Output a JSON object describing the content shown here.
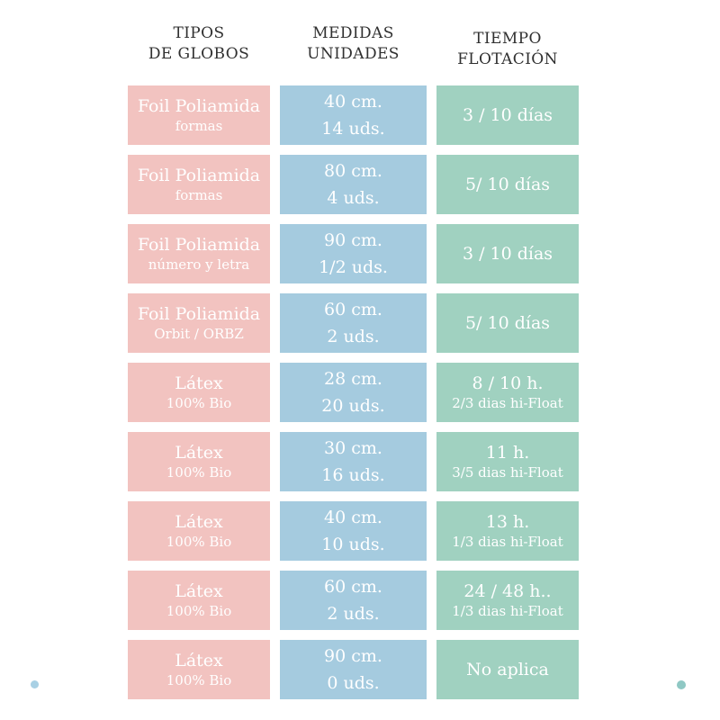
{
  "chart_data": {
    "type": "table",
    "columns": [
      {
        "header_line1": "TIPOS",
        "header_line2": "DE GLOBOS"
      },
      {
        "header_line1": "MEDIDAS",
        "header_line2": "UNIDADES"
      },
      {
        "header_line1": "TIEMPO",
        "header_line2": "FLOTACIÓN"
      }
    ],
    "rows": [
      {
        "tipo_main": "Foil Poliamida",
        "tipo_sub": "formas",
        "medida_size": "40 cm.",
        "medida_units": "14 uds.",
        "tiempo_main": "3 / 10 días",
        "tiempo_sub": ""
      },
      {
        "tipo_main": "Foil Poliamida",
        "tipo_sub": "formas",
        "medida_size": "80 cm.",
        "medida_units": "4 uds.",
        "tiempo_main": "5/ 10 días",
        "tiempo_sub": ""
      },
      {
        "tipo_main": "Foil Poliamida",
        "tipo_sub": "número y letra",
        "medida_size": "90 cm.",
        "medida_units": "1/2 uds.",
        "tiempo_main": "3 / 10 días",
        "tiempo_sub": ""
      },
      {
        "tipo_main": "Foil Poliamida",
        "tipo_sub": "Orbit / ORBZ",
        "medida_size": "60 cm.",
        "medida_units": "2 uds.",
        "tiempo_main": "5/ 10 días",
        "tiempo_sub": ""
      },
      {
        "tipo_main": "Látex",
        "tipo_sub": "100% Bio",
        "medida_size": "28 cm.",
        "medida_units": "20 uds.",
        "tiempo_main": "8 / 10 h.",
        "tiempo_sub": "2/3 dias hi-Float"
      },
      {
        "tipo_main": "Látex",
        "tipo_sub": "100% Bio",
        "medida_size": "30 cm.",
        "medida_units": "16 uds.",
        "tiempo_main": "11 h.",
        "tiempo_sub": "3/5 dias hi-Float"
      },
      {
        "tipo_main": "Látex",
        "tipo_sub": "100% Bio",
        "medida_size": "40 cm.",
        "medida_units": "10 uds.",
        "tiempo_main": "13 h.",
        "tiempo_sub": "1/3 dias hi-Float"
      },
      {
        "tipo_main": "Látex",
        "tipo_sub": "100% Bio",
        "medida_size": "60 cm.",
        "medida_units": "2 uds.",
        "tiempo_main": "24 / 48 h..",
        "tiempo_sub": "1/3 dias hi-Float"
      },
      {
        "tipo_main": "Látex",
        "tipo_sub": "100% Bio",
        "medida_size": "90 cm.",
        "medida_units": "0 uds.",
        "tiempo_main": "No aplica",
        "tiempo_sub": ""
      }
    ],
    "legend": "none",
    "grid": "off"
  },
  "colors": {
    "tipo_cell": "#f2c3c0",
    "medida_cell": "#a5cbdf",
    "tiempo_cell": "#a0d1c0",
    "header_text": "#303030",
    "cell_text": "#ffffff",
    "dot_left": "#a8d0e4",
    "dot_right": "#8fc8c4",
    "background": "#ffffff"
  }
}
